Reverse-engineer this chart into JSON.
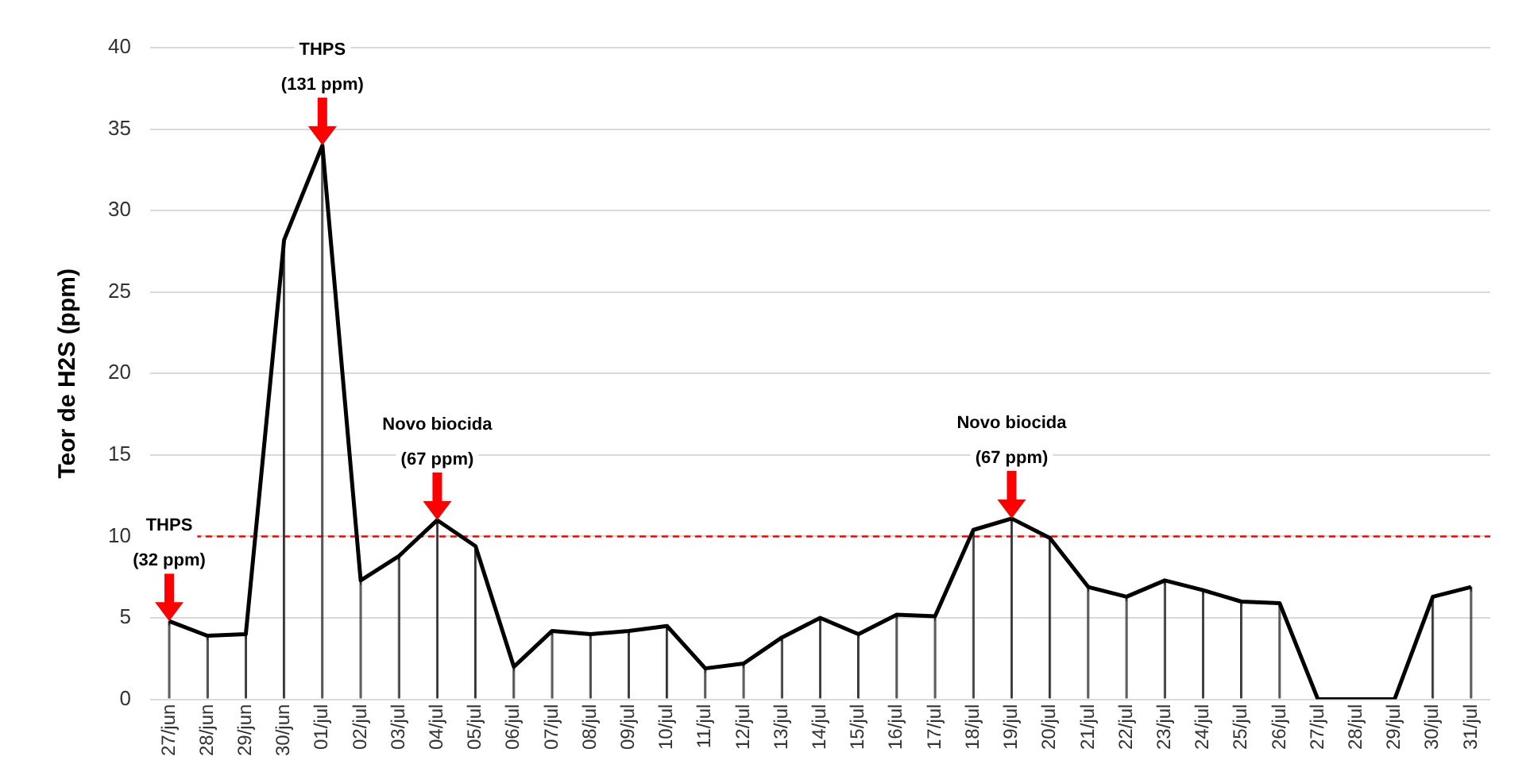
{
  "chart_data": {
    "type": "line",
    "ylabel": "Teor de H2S (ppm)",
    "categories": [
      "27/jun",
      "28/jun",
      "29/jun",
      "30/jun",
      "01/jul",
      "02/jul",
      "03/jul",
      "04/jul",
      "05/jul",
      "06/jul",
      "07/jul",
      "08/jul",
      "09/jul",
      "10/jul",
      "11/jul",
      "12/jul",
      "13/jul",
      "14/jul",
      "15/jul",
      "16/jul",
      "17/jul",
      "18/jul",
      "19/jul",
      "20/jul",
      "21/jul",
      "22/jul",
      "23/jul",
      "24/jul",
      "25/jul",
      "26/jul",
      "27/jul",
      "28/jul",
      "29/jul",
      "30/jul",
      "31/jul"
    ],
    "series": [
      {
        "type": "bar",
        "color": "#333333",
        "values": [
          4.8,
          3.9,
          4.0,
          28.2,
          34,
          7.3,
          8.8,
          11,
          9.4,
          2.0,
          4.2,
          4.0,
          4.2,
          4.5,
          1.9,
          2.2,
          3.8,
          5.0,
          4.0,
          5.2,
          5.1,
          10.4,
          11.1,
          9.9,
          6.9,
          6.3,
          7.3,
          6.7,
          6.0,
          5.9,
          0,
          0,
          0,
          6.3,
          6.9
        ]
      },
      {
        "color": "#000000",
        "values": [
          4.8,
          3.9,
          4.0,
          28.2,
          34,
          7.3,
          8.8,
          11,
          9.4,
          2.0,
          4.2,
          4.0,
          4.2,
          4.5,
          1.9,
          2.2,
          3.8,
          5.0,
          4.0,
          5.2,
          5.1,
          10.4,
          11.1,
          9.9,
          6.9,
          6.3,
          7.3,
          6.7,
          6.0,
          5.9,
          0,
          0,
          0,
          6.3,
          6.9
        ]
      }
    ],
    "ylim": [
      0,
      40
    ],
    "yticks": [
      0,
      5,
      10,
      15,
      20,
      25,
      30,
      35,
      40
    ],
    "grid": "y",
    "legend": false,
    "marker": "none",
    "line_style": "solid",
    "ref_lines": [
      {
        "axis": "y",
        "value": 10,
        "color": "#ff0000",
        "line_style": "dashed"
      }
    ],
    "annotations": [
      {
        "text": "THPS\n(32 ppm)",
        "x": "27/jun",
        "y": 4.8
      },
      {
        "text": "THPS\n(131 ppm)",
        "x": "01/jul",
        "y": 34
      },
      {
        "text": "Novo biocida\n(67 ppm)",
        "x": "04/jul",
        "y": 11
      },
      {
        "text": "Novo biocida\n(67 ppm)",
        "x": "19/jul",
        "y": 11.1
      }
    ]
  }
}
